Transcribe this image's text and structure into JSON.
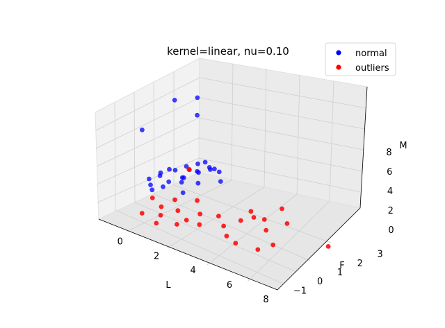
{
  "chart_data": {
    "type": "scatter3d",
    "title": "kernel=linear, nu=0.10",
    "xlabel": "L",
    "ylabel": "F",
    "zlabel": "M",
    "xlim": [
      -1.4,
      8.4
    ],
    "ylim": [
      -1.5,
      3.5
    ],
    "zlim": [
      -1.5,
      9.5
    ],
    "xticks": [
      "0",
      "2",
      "4",
      "6",
      "8"
    ],
    "yticks": [
      "−1",
      "0",
      "1",
      "2",
      "3"
    ],
    "zticks": [
      "0",
      "2",
      "4",
      "6",
      "8"
    ],
    "legend": {
      "placement": "top-right"
    },
    "series": [
      {
        "name": "normal",
        "color": "#0000ff",
        "points": [
          [
            0.2,
            2.1,
            8.8
          ],
          [
            -0.5,
            1.6,
            8.5
          ],
          [
            0.5,
            1.8,
            7.5
          ],
          [
            -1.0,
            0.4,
            6.2
          ],
          [
            2.5,
            0.8,
            4.4
          ],
          [
            2.0,
            1.0,
            4.0
          ],
          [
            1.5,
            0.9,
            3.2
          ],
          [
            0.5,
            1.2,
            2.8
          ],
          [
            0.0,
            0.8,
            2.5
          ],
          [
            1.0,
            0.5,
            2.2
          ],
          [
            1.8,
            0.6,
            2.6
          ],
          [
            0.8,
            1.5,
            3.0
          ],
          [
            -0.3,
            0.6,
            1.8
          ],
          [
            0.3,
            0.2,
            1.5
          ],
          [
            1.2,
            1.1,
            2.9
          ],
          [
            2.2,
            1.3,
            3.4
          ],
          [
            -0.8,
            0.5,
            1.2
          ],
          [
            -0.5,
            0.3,
            1.0
          ],
          [
            0.6,
            0.9,
            2.0
          ],
          [
            1.4,
            0.2,
            1.7
          ],
          [
            0.1,
            1.0,
            2.3
          ],
          [
            -0.2,
            0.1,
            0.9
          ],
          [
            0.9,
            0.7,
            2.4
          ],
          [
            1.6,
            1.4,
            3.1
          ],
          [
            -0.6,
            0.9,
            1.6
          ],
          [
            0.4,
            0.4,
            1.9
          ],
          [
            1.1,
            1.6,
            3.3
          ],
          [
            2.6,
            1.0,
            3.0
          ]
        ]
      },
      {
        "name": "outliers",
        "color": "#ff0000",
        "points": [
          [
            1.2,
            0.7,
            3.5
          ],
          [
            1.0,
            0.9,
            3.1
          ],
          [
            5.4,
            1.5,
            1.8
          ],
          [
            5.2,
            0.8,
            1.2
          ],
          [
            6.0,
            1.2,
            1.0
          ],
          [
            4.5,
            0.9,
            0.8
          ],
          [
            5.5,
            0.6,
            0.5
          ],
          [
            3.9,
            1.3,
            0.6
          ],
          [
            6.2,
            0.3,
            -0.2
          ],
          [
            7.8,
            1.6,
            -0.4
          ],
          [
            4.8,
            -0.3,
            -0.5
          ],
          [
            4.2,
            -0.2,
            -0.3
          ],
          [
            3.6,
            0.2,
            -0.1
          ],
          [
            3.0,
            0.5,
            0.2
          ],
          [
            2.6,
            -0.1,
            -0.4
          ],
          [
            2.2,
            0.3,
            0.0
          ],
          [
            1.8,
            -0.5,
            -0.6
          ],
          [
            1.2,
            0.1,
            -0.2
          ],
          [
            0.8,
            -0.4,
            -0.5
          ],
          [
            0.4,
            0.0,
            -0.3
          ],
          [
            0.0,
            -0.6,
            -0.7
          ],
          [
            -0.3,
            0.2,
            -0.1
          ],
          [
            1.5,
            0.8,
            0.4
          ],
          [
            2.0,
            -0.2,
            -0.3
          ],
          [
            0.6,
            0.5,
            0.1
          ],
          [
            1.0,
            -0.8,
            -0.8
          ],
          [
            5.8,
            -0.1,
            -0.6
          ],
          [
            4.0,
            0.7,
            0.3
          ]
        ]
      }
    ]
  }
}
